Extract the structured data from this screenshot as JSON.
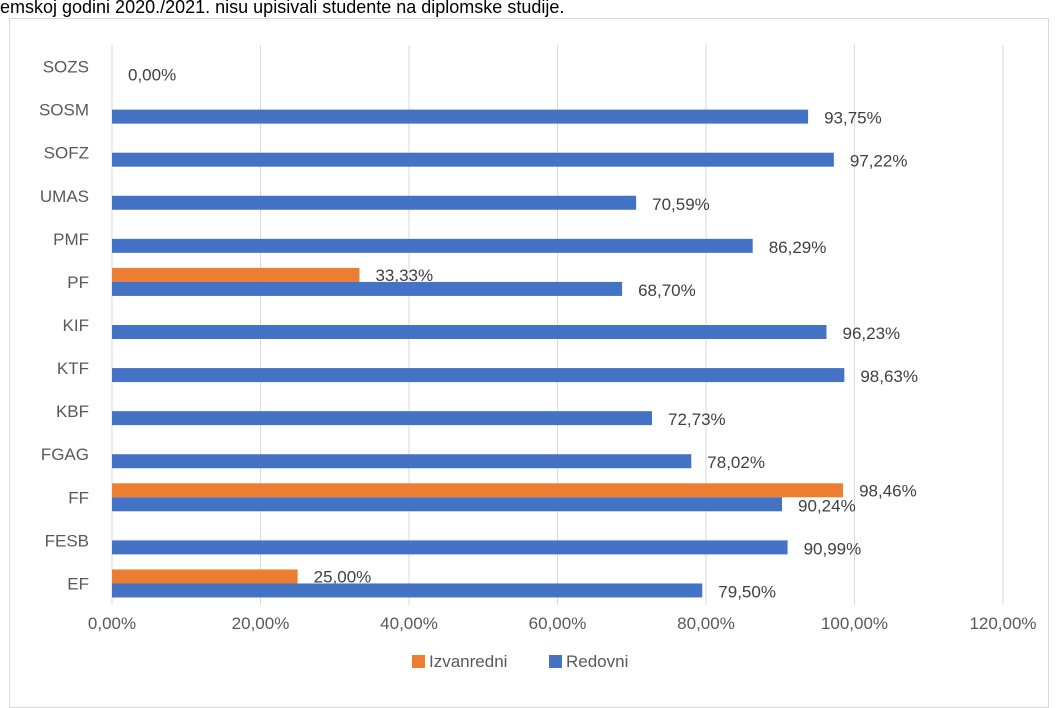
{
  "caption": "emskoj godini 2020./2021. nisu upisivali studente na diplomske studije.",
  "chart_data": {
    "type": "bar",
    "orientation": "horizontal",
    "categories": [
      "EF",
      "FESB",
      "FF",
      "FGAG",
      "KBF",
      "KTF",
      "KIF",
      "PF",
      "PMF",
      "UMAS",
      "SOFZ",
      "SOSM",
      "SOZS"
    ],
    "series": [
      {
        "name": "Izvanredni",
        "color": "#ed7d31",
        "values": [
          25.0,
          null,
          98.46,
          null,
          null,
          null,
          null,
          33.33,
          null,
          null,
          null,
          null,
          null
        ],
        "labels": [
          "25,00%",
          null,
          "98,46%",
          null,
          null,
          null,
          null,
          "33,33%",
          null,
          null,
          null,
          null,
          null
        ]
      },
      {
        "name": "Redovni",
        "color": "#4472c4",
        "values": [
          79.5,
          90.99,
          90.24,
          78.02,
          72.73,
          98.63,
          96.23,
          68.7,
          86.29,
          70.59,
          97.22,
          93.75,
          0.0
        ],
        "labels": [
          "79,50%",
          "90,99%",
          "90,24%",
          "78,02%",
          "72,73%",
          "98,63%",
          "96,23%",
          "68,70%",
          "86,29%",
          "70,59%",
          "97,22%",
          "93,75%",
          "0,00%"
        ]
      }
    ],
    "xlim": [
      0,
      120
    ],
    "xticks": [
      0,
      20,
      40,
      60,
      80,
      100,
      120
    ],
    "xtick_labels": [
      "0,00%",
      "20,00%",
      "40,00%",
      "60,00%",
      "80,00%",
      "100,00%",
      "120,00%"
    ],
    "grid": true,
    "legend_position": "bottom"
  }
}
